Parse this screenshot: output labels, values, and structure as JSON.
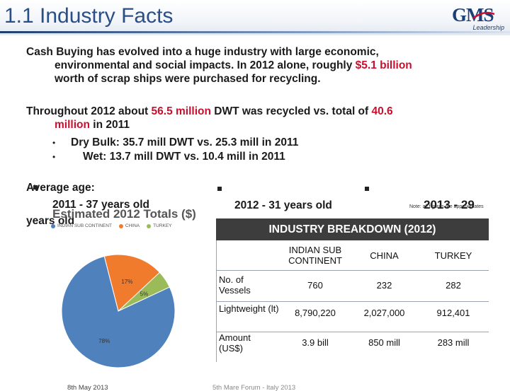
{
  "header": {
    "title": "1.1 Industry Facts",
    "logo_main": "GMS",
    "logo_sub": "Leadership"
  },
  "body": {
    "p1_a": "Cash Buying has evolved into a huge industry with large economic,",
    "p1_b": "environmental and social impacts. In 2012 alone, roughly ",
    "p1_hl": "$5.1 billion",
    "p1_c": "worth of scrap ships were purchased for recycling.",
    "p2_a": "Throughout 2012 about ",
    "p2_hl1": "56.5 million",
    "p2_b": " DWT was recycled vs. total of ",
    "p2_hl2": "40.6",
    "p2_hl3": "million",
    "p2_c": " in 2011",
    "bullets": [
      "Dry Bulk: 35.7 mill DWT vs. 25.3 mill in 2011",
      "Wet: 13.7 mill DWT vs. 10.4 mill in 2011"
    ],
    "avg_label": "Average age:",
    "age_2011": "2011 - 37 years old",
    "age_2012": "2012 - 31 years old",
    "age_2013": "2013 - 29",
    "age_2013_cont": "years old",
    "note": "Note: all figures are approximates"
  },
  "pie_chart": {
    "title": "Estimated 2012 Totals ($)",
    "legend": [
      {
        "label": "INDIAN SUB CONTINENT",
        "color": "#4f81bd"
      },
      {
        "label": "CHINA",
        "color": "#f07b2c"
      },
      {
        "label": "TURKEY",
        "color": "#9bbb59"
      }
    ]
  },
  "chart_data": {
    "type": "pie",
    "title": "Estimated 2012 Totals ($)",
    "categories": [
      "INDIAN SUB CONTINENT",
      "CHINA",
      "TURKEY"
    ],
    "values": [
      78,
      17,
      5
    ],
    "labels": [
      "78%",
      "17%",
      "5%"
    ],
    "colors": [
      "#4f81bd",
      "#f07b2c",
      "#9bbb59"
    ],
    "legend": "top"
  },
  "table": {
    "title": "INDUSTRY BREAKDOWN (2012)",
    "columns": [
      "INDIAN SUB CONTINENT",
      "CHINA",
      "TURKEY"
    ],
    "rows": [
      {
        "label": "No. of Vessels",
        "values": [
          "760",
          "232",
          "282"
        ]
      },
      {
        "label": "Lightweight (lt)",
        "values": [
          "8,790,220",
          "2,027,000",
          "912,401"
        ]
      },
      {
        "label": "Amount (US$)",
        "values": [
          "3.9 bill",
          "850 mill",
          "283 mill"
        ]
      }
    ]
  },
  "footer": {
    "date": "8th May 2013",
    "event": "5th Mare Forum - Italy 2013"
  }
}
